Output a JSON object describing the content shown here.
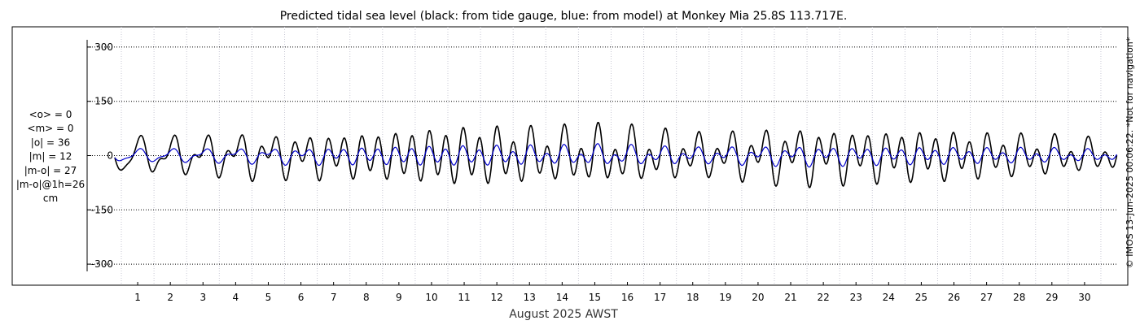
{
  "chart_data": {
    "type": "line",
    "title": "Predicted tidal sea level (black: from tide gauge, blue: from model) at Monkey Mia 25.8S 113.717E.",
    "xlabel": "August 2025 AWST",
    "ylabel": "",
    "x_ticks": [
      "1",
      "2",
      "3",
      "4",
      "5",
      "6",
      "7",
      "8",
      "9",
      "10",
      "11",
      "12",
      "13",
      "14",
      "15",
      "16",
      "17",
      "18",
      "19",
      "20",
      "21",
      "22",
      "23",
      "24",
      "25",
      "26",
      "27",
      "28",
      "29",
      "30"
    ],
    "y_ticks": [
      "300",
      "150",
      "0",
      "-150",
      "-300"
    ],
    "xlim": [
      0.2,
      31.0
    ],
    "ylim": [
      -320,
      320
    ],
    "grid": true,
    "stats": [
      "<o> = 0",
      "<m> = 0",
      "|o| = 36",
      "|m| = 12",
      "|m-o| = 27",
      "|m-o|@1h=26",
      "cm"
    ],
    "side_note": "© IMOS 13-Jun-2025 00:06:22. *Not for navigation*",
    "series": [
      {
        "color": "#000000",
        "x": [
          0.5,
          1.5,
          2.5,
          3.5,
          4.5,
          5.5,
          6.5,
          7.5,
          8.5,
          9.5,
          10.5,
          11.5,
          12.5,
          13.5,
          14.5,
          15.5,
          16.5,
          17.5,
          18.5,
          19.5,
          20.5,
          21.5,
          22.5,
          23.5,
          24.5,
          25.5,
          26.5,
          27.5,
          28.5,
          29.5,
          30.5
        ],
        "diurnal_amplitude": [
          45,
          40,
          38,
          38,
          40,
          30,
          25,
          15,
          10,
          10,
          15,
          20,
          25,
          30,
          35,
          38,
          35,
          30,
          30,
          35,
          38,
          35,
          30,
          25,
          20,
          20,
          20,
          22,
          25,
          25,
          20
        ],
        "semidiurnal_amplitude": [
          10,
          20,
          25,
          30,
          35,
          40,
          45,
          50,
          55,
          60,
          65,
          65,
          60,
          55,
          55,
          55,
          50,
          45,
          40,
          45,
          50,
          55,
          55,
          55,
          55,
          55,
          50,
          45,
          40,
          35,
          30
        ]
      },
      {
        "color": "#0000cc",
        "x": [
          0.5,
          1.5,
          2.5,
          3.5,
          4.5,
          5.5,
          6.5,
          7.5,
          8.5,
          9.5,
          10.5,
          11.5,
          12.5,
          13.5,
          14.5,
          15.5,
          16.5,
          17.5,
          18.5,
          19.5,
          20.5,
          21.5,
          22.5,
          23.5,
          24.5,
          25.5,
          26.5,
          27.5,
          28.5,
          29.5,
          30.5
        ],
        "diurnal_amplitude": [
          15,
          15,
          15,
          15,
          15,
          15,
          12,
          8,
          5,
          5,
          6,
          8,
          10,
          12,
          14,
          16,
          14,
          12,
          12,
          14,
          15,
          14,
          12,
          10,
          8,
          8,
          8,
          9,
          10,
          10,
          8
        ],
        "semidiurnal_amplitude": [
          5,
          6,
          7,
          8,
          10,
          12,
          15,
          18,
          20,
          22,
          22,
          22,
          20,
          18,
          18,
          18,
          16,
          15,
          14,
          15,
          16,
          18,
          18,
          18,
          18,
          18,
          16,
          15,
          14,
          12,
          10
        ]
      }
    ]
  }
}
